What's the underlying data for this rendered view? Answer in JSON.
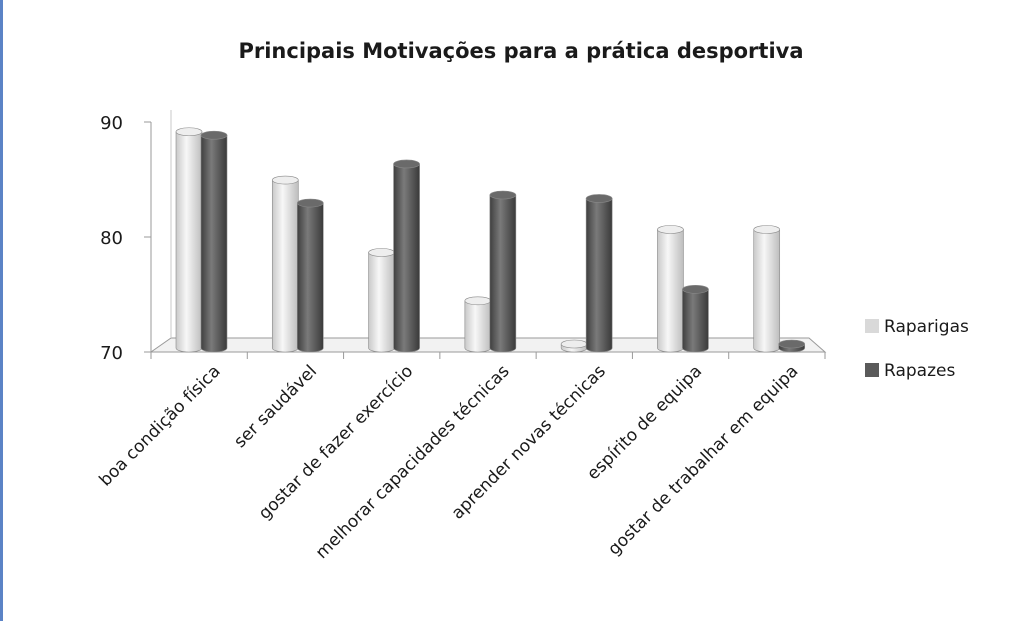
{
  "chart_data": {
    "type": "bar",
    "title": "Principais Motivações para a prática desportiva",
    "xlabel": "",
    "ylabel": "",
    "ylim": [
      70,
      90
    ],
    "y_ticks": [
      70,
      80,
      90
    ],
    "grid": false,
    "legend_position": "right",
    "categories": [
      "boa condição física",
      "ser saudável",
      "gostar de fazer exercício",
      "melhorar capacidades técnicas",
      "aprender novas técnicas",
      "espírito de equipa",
      "gostar de trabalhar em equipa"
    ],
    "series": [
      {
        "name": "Raparigas",
        "color": "#d9d9d9",
        "values": [
          89.5,
          85.3,
          79.0,
          74.8,
          70.2,
          81.0,
          81.0
        ]
      },
      {
        "name": "Rapazes",
        "color": "#5a5a5a",
        "values": [
          89.2,
          83.3,
          86.7,
          84.0,
          83.7,
          75.8,
          70.0
        ]
      }
    ]
  }
}
